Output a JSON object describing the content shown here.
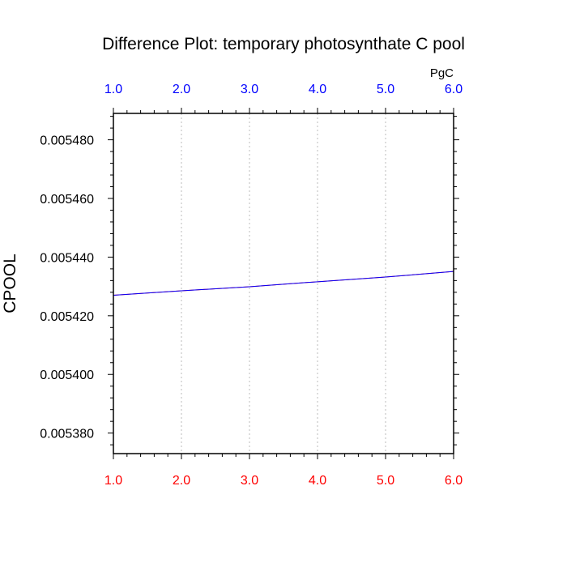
{
  "chart_data": {
    "type": "line",
    "title": "Difference Plot: temporary photosynthate C pool",
    "ylabel": "CPOOL",
    "top_axis_unit": "PgC",
    "xlim": [
      1.0,
      6.0
    ],
    "ylim": [
      0.005373,
      0.005489
    ],
    "x_ticks": [
      "1.0",
      "2.0",
      "3.0",
      "4.0",
      "5.0",
      "6.0"
    ],
    "x_tick_values": [
      1,
      2,
      3,
      4,
      5,
      6
    ],
    "y_ticks": [
      "0.005380",
      "0.005400",
      "0.005420",
      "0.005440",
      "0.005460",
      "0.005480"
    ],
    "y_tick_values": [
      0.00538,
      0.0054,
      0.00542,
      0.00544,
      0.00546,
      0.00548
    ],
    "grid": "vertical dotted",
    "series": [
      {
        "name": "series-1",
        "color": "#0000ff",
        "x": [
          1,
          2,
          3,
          4,
          5,
          6
        ],
        "values": [
          0.005427,
          0.0054285,
          0.0054299,
          0.0054316,
          0.0054332,
          0.0054351
        ]
      },
      {
        "name": "series-2",
        "color": "#ff0000",
        "x": [
          1,
          2,
          3,
          4,
          5,
          6
        ],
        "values": [
          0.005427,
          0.0054285,
          0.0054299,
          0.0054316,
          0.0054332,
          0.0054351
        ]
      }
    ],
    "colors": {
      "top_axis_text": "#0000ff",
      "bottom_axis_text": "#ff0000",
      "grid": "#bbbbbb",
      "frame": "#000000"
    }
  }
}
